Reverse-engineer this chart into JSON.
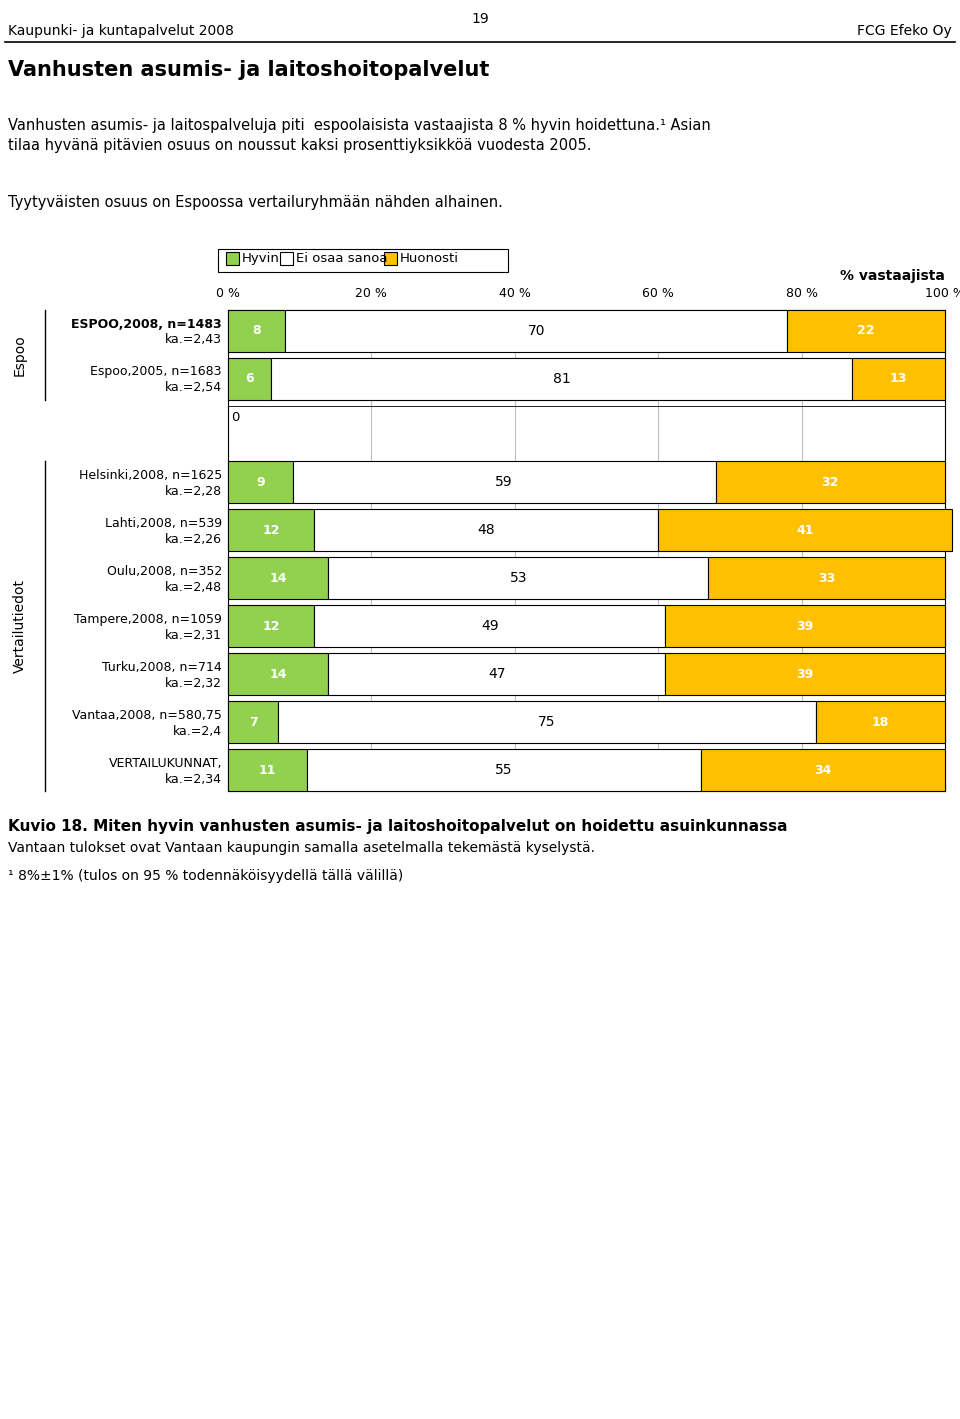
{
  "page_number": "19",
  "header_left": "Kaupunki- ja kuntapalvelut 2008",
  "header_right": "FCG Efeko Oy",
  "main_title": "Vanhusten asumis- ja laitoshoitopalvelut",
  "body_text1": "Vanhusten asumis- ja laitospalveluja piti  espoolaisista vastaajista 8 % hyvin hoidettuna.¹ Asian tilaa hyvänä pitävien osuus on noussut kaksi prosenttiyksikköä vuodesta 2005.",
  "body_text2": "Tyytyväisten osuus on Espoossa vertailuryhmään nähden alhainen.",
  "legend_items": [
    "Hyvin",
    "Ei osaa sanoa",
    "Huonosti"
  ],
  "legend_colors": [
    "#92d050",
    "#ffffff",
    "#ffc000"
  ],
  "axis_title": "% vastaajista",
  "x_ticks": [
    "0 %",
    "20 %",
    "40 %",
    "60 %",
    "80 %",
    "100 %"
  ],
  "x_values": [
    0,
    20,
    40,
    60,
    80,
    100
  ],
  "rows": [
    {
      "label_line1": "ESPOO,2008, n=1483",
      "label_line2": "ka.=2,43",
      "hyvin": 8,
      "ei": 70,
      "huonosti": 22,
      "group": "Espoo",
      "bold": true
    },
    {
      "label_line1": "Espoo,2005, n=1683",
      "label_line2": "ka.=2,54",
      "hyvin": 6,
      "ei": 81,
      "huonosti": 13,
      "group": "Espoo",
      "bold": false
    },
    {
      "label_line1": "0",
      "label_line2": "",
      "hyvin": 0,
      "ei": 0,
      "huonosti": 0,
      "group": "Espoo",
      "bold": false,
      "spacer": true
    },
    {
      "label_line1": "Helsinki,2008, n=1625",
      "label_line2": "ka.=2,28",
      "hyvin": 9,
      "ei": 59,
      "huonosti": 32,
      "group": "Vertailutiedot",
      "bold": false
    },
    {
      "label_line1": "Lahti,2008, n=539",
      "label_line2": "ka.=2,26",
      "hyvin": 12,
      "ei": 48,
      "huonosti": 41,
      "group": "Vertailutiedot",
      "bold": false
    },
    {
      "label_line1": "Oulu,2008, n=352",
      "label_line2": "ka.=2,48",
      "hyvin": 14,
      "ei": 53,
      "huonosti": 33,
      "group": "Vertailutiedot",
      "bold": false
    },
    {
      "label_line1": "Tampere,2008, n=1059",
      "label_line2": "ka.=2,31",
      "hyvin": 12,
      "ei": 49,
      "huonosti": 39,
      "group": "Vertailutiedot",
      "bold": false
    },
    {
      "label_line1": "Turku,2008, n=714",
      "label_line2": "ka.=2,32",
      "hyvin": 14,
      "ei": 47,
      "huonosti": 39,
      "group": "Vertailutiedot",
      "bold": false
    },
    {
      "label_line1": "Vantaa,2008, n=580,75",
      "label_line2": "ka.=2,4",
      "hyvin": 7,
      "ei": 75,
      "huonosti": 18,
      "group": "Vertailutiedot",
      "bold": false
    },
    {
      "label_line1": "VERTAILUKUNNAT,",
      "label_line2": "ka.=2,34",
      "hyvin": 11,
      "ei": 55,
      "huonosti": 34,
      "group": "Vertailutiedot",
      "bold": false
    }
  ],
  "footer_title": "Kuvio 18. Miten hyvin vanhusten asumis- ja laitoshoitopalvelut on hoidettu asuinkunnassa",
  "footer_text1": "Vantaan tulokset ovat Vantaan kaupungin samalla asetelmalla tekemästä kyselystä.",
  "footer_text2": "¹ 8%±1% (tulos on 95 % todennäköisyydellä tällä välillä)",
  "color_hyvin": "#92d050",
  "color_ei": "#ffffff",
  "color_huonosti": "#ffc000"
}
